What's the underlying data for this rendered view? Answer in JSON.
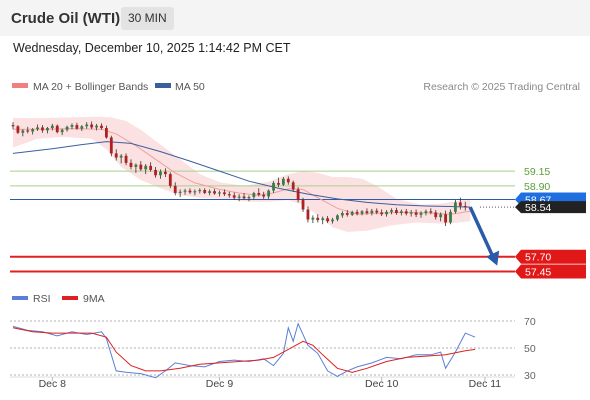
{
  "header": {
    "instrument": "Crude Oil (WTI)",
    "timeframe": "30 MIN"
  },
  "datetime": "Wednesday, December 10, 2025 1:14:42 PM CET",
  "legend": {
    "ma20_label": "MA 20 + Bollinger Bands",
    "ma20_color": "#f08080",
    "ma50_label": "MA 50",
    "ma50_color": "#3a5fa0",
    "credit": "Research © 2025 Trading Central"
  },
  "rsi_legend": {
    "rsi_label": "RSI",
    "rsi_color": "#5b7fd6",
    "ma_label": "9MA",
    "ma_color": "#e02020"
  },
  "chart_data": [
    {
      "type": "line",
      "title": "Crude Oil (WTI) 30 MIN",
      "x_labels": [
        "Dec 8",
        "Dec 9",
        "Dec 10",
        "Dec 11"
      ],
      "x_range": [
        0,
        104
      ],
      "x_tick_positions": [
        8,
        42,
        75,
        96
      ],
      "ylim": [
        56.8,
        60.2
      ],
      "price_labels": [
        {
          "value": 59.15,
          "text": "59.15",
          "style": "green"
        },
        {
          "value": 58.9,
          "text": "58.90",
          "style": "green"
        },
        {
          "value": 58.67,
          "text": "58.67",
          "style": "current"
        },
        {
          "value": 58.54,
          "text": "58.54",
          "style": "last"
        },
        {
          "value": 57.7,
          "text": "57.70",
          "style": "red"
        },
        {
          "value": 57.45,
          "text": "57.45",
          "style": "red"
        }
      ],
      "candles": [
        [
          59.93,
          59.98,
          59.86,
          59.91
        ],
        [
          59.91,
          59.93,
          59.78,
          59.8
        ],
        [
          59.8,
          59.86,
          59.74,
          59.84
        ],
        [
          59.84,
          59.9,
          59.79,
          59.82
        ],
        [
          59.82,
          59.88,
          59.77,
          59.86
        ],
        [
          59.86,
          59.94,
          59.83,
          59.89
        ],
        [
          59.89,
          59.93,
          59.8,
          59.84
        ],
        [
          59.84,
          59.9,
          59.79,
          59.88
        ],
        [
          59.88,
          59.95,
          59.84,
          59.92
        ],
        [
          59.92,
          59.94,
          59.79,
          59.81
        ],
        [
          59.81,
          59.87,
          59.76,
          59.85
        ],
        [
          59.85,
          59.92,
          59.82,
          59.9
        ],
        [
          59.9,
          59.96,
          59.86,
          59.93
        ],
        [
          59.93,
          59.97,
          59.85,
          59.87
        ],
        [
          59.87,
          59.93,
          59.83,
          59.91
        ],
        [
          59.91,
          59.98,
          59.87,
          59.94
        ],
        [
          59.94,
          59.99,
          59.86,
          59.89
        ],
        [
          59.89,
          59.95,
          59.84,
          59.92
        ],
        [
          59.92,
          59.96,
          59.85,
          59.88
        ],
        [
          59.88,
          59.92,
          59.7,
          59.72
        ],
        [
          59.72,
          59.75,
          59.4,
          59.45
        ],
        [
          59.45,
          59.52,
          59.33,
          59.38
        ],
        [
          59.38,
          59.44,
          59.28,
          59.41
        ],
        [
          59.41,
          59.45,
          59.25,
          59.29
        ],
        [
          59.29,
          59.35,
          59.18,
          59.22
        ],
        [
          59.22,
          59.28,
          59.12,
          59.26
        ],
        [
          59.26,
          59.32,
          59.15,
          59.18
        ],
        [
          59.18,
          59.27,
          59.1,
          59.24
        ],
        [
          59.24,
          59.3,
          59.14,
          59.17
        ],
        [
          59.17,
          59.22,
          59.04,
          59.08
        ],
        [
          59.08,
          59.18,
          59.02,
          59.14
        ],
        [
          59.14,
          59.2,
          59.05,
          59.1
        ],
        [
          59.1,
          59.13,
          58.86,
          58.9
        ],
        [
          58.9,
          58.96,
          58.74,
          58.78
        ],
        [
          58.78,
          58.84,
          58.71,
          58.8
        ],
        [
          58.8,
          58.85,
          58.75,
          58.82
        ],
        [
          58.82,
          58.86,
          58.76,
          58.79
        ],
        [
          58.79,
          58.84,
          58.74,
          58.81
        ],
        [
          58.81,
          58.86,
          58.77,
          58.83
        ],
        [
          58.83,
          58.86,
          58.76,
          58.78
        ],
        [
          58.78,
          58.84,
          58.74,
          58.81
        ],
        [
          58.81,
          58.85,
          58.75,
          58.77
        ],
        [
          58.77,
          58.82,
          58.72,
          58.79
        ],
        [
          58.79,
          58.84,
          58.73,
          58.76
        ],
        [
          58.76,
          58.8,
          58.7,
          58.74
        ],
        [
          58.74,
          58.79,
          58.66,
          58.7
        ],
        [
          58.7,
          58.76,
          58.64,
          58.72
        ],
        [
          58.72,
          58.78,
          58.66,
          58.69
        ],
        [
          58.69,
          58.74,
          58.64,
          58.71
        ],
        [
          58.71,
          58.8,
          58.67,
          58.78
        ],
        [
          58.78,
          58.86,
          58.72,
          58.75
        ],
        [
          58.75,
          58.8,
          58.68,
          58.72
        ],
        [
          58.72,
          58.84,
          58.68,
          58.82
        ],
        [
          58.82,
          58.98,
          58.78,
          58.95
        ],
        [
          58.95,
          59.04,
          58.88,
          58.92
        ],
        [
          58.92,
          59.05,
          58.9,
          59.02
        ],
        [
          59.02,
          59.06,
          58.92,
          58.96
        ],
        [
          58.96,
          58.99,
          58.8,
          58.84
        ],
        [
          58.84,
          58.88,
          58.62,
          58.66
        ],
        [
          58.66,
          58.7,
          58.46,
          58.5
        ],
        [
          58.5,
          58.55,
          58.28,
          58.33
        ],
        [
          58.33,
          58.4,
          58.27,
          58.36
        ],
        [
          58.36,
          58.42,
          58.28,
          58.32
        ],
        [
          58.32,
          58.38,
          58.25,
          58.35
        ],
        [
          58.35,
          58.39,
          58.27,
          58.3
        ],
        [
          58.3,
          58.36,
          58.26,
          58.33
        ],
        [
          58.33,
          58.42,
          58.3,
          58.4
        ],
        [
          58.4,
          58.47,
          58.36,
          58.44
        ],
        [
          58.44,
          58.49,
          58.38,
          58.41
        ],
        [
          58.41,
          58.48,
          58.39,
          58.46
        ],
        [
          58.46,
          58.5,
          58.4,
          58.43
        ],
        [
          58.43,
          58.49,
          58.4,
          58.47
        ],
        [
          58.47,
          58.52,
          58.41,
          58.44
        ],
        [
          58.44,
          58.51,
          58.4,
          58.48
        ],
        [
          58.48,
          58.52,
          58.42,
          58.45
        ],
        [
          58.45,
          58.5,
          58.39,
          58.42
        ],
        [
          58.42,
          58.49,
          58.38,
          58.46
        ],
        [
          58.46,
          58.52,
          58.42,
          58.49
        ],
        [
          58.49,
          58.53,
          58.41,
          58.44
        ],
        [
          58.44,
          58.5,
          58.4,
          58.47
        ],
        [
          58.47,
          58.51,
          58.4,
          58.43
        ],
        [
          58.43,
          58.49,
          58.38,
          58.45
        ],
        [
          58.45,
          58.5,
          58.37,
          58.41
        ],
        [
          58.41,
          58.47,
          58.36,
          58.44
        ],
        [
          58.44,
          58.5,
          58.4,
          58.47
        ],
        [
          58.47,
          58.52,
          58.42,
          58.45
        ],
        [
          58.45,
          58.49,
          58.33,
          58.37
        ],
        [
          58.37,
          58.45,
          58.3,
          58.42
        ],
        [
          58.42,
          58.48,
          58.22,
          58.28
        ],
        [
          58.28,
          58.5,
          58.25,
          58.46
        ],
        [
          58.46,
          58.66,
          58.43,
          58.62
        ],
        [
          58.62,
          58.7,
          58.5,
          58.56
        ],
        [
          58.56,
          58.63,
          58.48,
          58.54
        ]
      ],
      "ma50": [
        [
          0,
          59.45
        ],
        [
          8,
          59.53
        ],
        [
          14,
          59.6
        ],
        [
          19,
          59.65
        ],
        [
          24,
          59.62
        ],
        [
          30,
          59.48
        ],
        [
          36,
          59.32
        ],
        [
          42,
          59.15
        ],
        [
          48,
          58.98
        ],
        [
          54,
          58.86
        ],
        [
          60,
          58.76
        ],
        [
          66,
          58.68
        ],
        [
          72,
          58.62
        ],
        [
          78,
          58.58
        ],
        [
          84,
          58.56
        ],
        [
          89,
          58.55
        ],
        [
          93,
          58.54
        ]
      ],
      "bb_mid": [
        [
          0,
          59.86
        ],
        [
          6,
          59.86
        ],
        [
          12,
          59.87
        ],
        [
          18,
          59.86
        ],
        [
          21,
          59.78
        ],
        [
          25,
          59.58
        ],
        [
          29,
          59.35
        ],
        [
          33,
          59.12
        ],
        [
          37,
          58.95
        ],
        [
          42,
          58.84
        ],
        [
          46,
          58.78
        ],
        [
          50,
          58.74
        ],
        [
          53,
          58.78
        ],
        [
          56,
          58.85
        ],
        [
          59,
          58.84
        ],
        [
          62,
          58.7
        ],
        [
          66,
          58.52
        ],
        [
          70,
          58.42
        ],
        [
          75,
          58.44
        ],
        [
          80,
          58.45
        ],
        [
          85,
          58.44
        ],
        [
          89,
          58.42
        ],
        [
          93,
          58.47
        ]
      ],
      "bb_upper": [
        [
          0,
          60.05
        ],
        [
          6,
          60.05
        ],
        [
          12,
          60.06
        ],
        [
          17,
          60.07
        ],
        [
          20,
          60.06
        ],
        [
          23,
          60.0
        ],
        [
          26,
          59.85
        ],
        [
          30,
          59.6
        ],
        [
          34,
          59.35
        ],
        [
          38,
          59.1
        ],
        [
          42,
          58.96
        ],
        [
          47,
          58.9
        ],
        [
          52,
          58.97
        ],
        [
          56,
          59.1
        ],
        [
          59,
          59.15
        ],
        [
          62,
          59.12
        ],
        [
          65,
          59.05
        ],
        [
          68,
          59.05
        ],
        [
          71,
          59.02
        ],
        [
          74,
          58.9
        ],
        [
          78,
          58.68
        ],
        [
          83,
          58.58
        ],
        [
          87,
          58.6
        ],
        [
          93,
          58.68
        ]
      ],
      "bb_lower": [
        [
          0,
          59.55
        ],
        [
          5,
          59.7
        ],
        [
          10,
          59.73
        ],
        [
          16,
          59.7
        ],
        [
          19,
          59.52
        ],
        [
          22,
          59.22
        ],
        [
          26,
          59.0
        ],
        [
          30,
          58.86
        ],
        [
          34,
          58.74
        ],
        [
          38,
          58.7
        ],
        [
          43,
          58.68
        ],
        [
          48,
          58.63
        ],
        [
          52,
          58.63
        ],
        [
          56,
          58.66
        ],
        [
          59,
          58.58
        ],
        [
          62,
          58.4
        ],
        [
          65,
          58.2
        ],
        [
          68,
          58.12
        ],
        [
          72,
          58.14
        ],
        [
          77,
          58.23
        ],
        [
          82,
          58.28
        ],
        [
          88,
          58.26
        ],
        [
          93,
          58.3
        ]
      ],
      "forecast_arrow": [
        [
          93,
          58.54
        ],
        [
          98.5,
          57.55
        ]
      ]
    },
    {
      "type": "line",
      "title": "RSI",
      "ylim": [
        20,
        80
      ],
      "levels": [
        70,
        50,
        30
      ],
      "tick_labels": [
        "70",
        "50",
        "30"
      ],
      "x_range": [
        0,
        104
      ],
      "series": [
        {
          "name": "RSI",
          "color": "#5b7fd6",
          "points": [
            [
              0,
              66
            ],
            [
              3,
              63
            ],
            [
              6,
              62
            ],
            [
              9,
              59
            ],
            [
              12,
              62
            ],
            [
              15,
              60
            ],
            [
              18,
              62
            ],
            [
              19,
              57
            ],
            [
              21,
              33
            ],
            [
              23,
              32
            ],
            [
              26,
              31
            ],
            [
              29,
              28
            ],
            [
              31,
              33
            ],
            [
              33,
              39
            ],
            [
              36,
              37
            ],
            [
              39,
              36
            ],
            [
              42,
              40
            ],
            [
              45,
              41
            ],
            [
              48,
              40
            ],
            [
              51,
              42
            ],
            [
              53,
              37
            ],
            [
              55,
              46
            ],
            [
              56,
              65
            ],
            [
              57,
              55
            ],
            [
              58,
              68
            ],
            [
              60,
              52
            ],
            [
              62,
              46
            ],
            [
              64,
              33
            ],
            [
              66,
              29
            ],
            [
              68,
              33
            ],
            [
              70,
              36
            ],
            [
              73,
              39
            ],
            [
              76,
              43
            ],
            [
              79,
              42
            ],
            [
              82,
              45
            ],
            [
              85,
              45
            ],
            [
              87,
              47
            ],
            [
              88,
              35
            ],
            [
              90,
              47
            ],
            [
              92,
              61
            ],
            [
              94,
              58
            ]
          ]
        },
        {
          "name": "9MA",
          "color": "#e02020",
          "points": [
            [
              0,
              65
            ],
            [
              4,
              62
            ],
            [
              8,
              61
            ],
            [
              12,
              61
            ],
            [
              16,
              61
            ],
            [
              19,
              58
            ],
            [
              21,
              47
            ],
            [
              24,
              37
            ],
            [
              27,
              33
            ],
            [
              30,
              33
            ],
            [
              34,
              35
            ],
            [
              38,
              38
            ],
            [
              42,
              39
            ],
            [
              46,
              40
            ],
            [
              50,
              41
            ],
            [
              53,
              43
            ],
            [
              56,
              49
            ],
            [
              59,
              55
            ],
            [
              61,
              52
            ],
            [
              63,
              45
            ],
            [
              66,
              35
            ],
            [
              69,
              32
            ],
            [
              72,
              35
            ],
            [
              76,
              40
            ],
            [
              80,
              43
            ],
            [
              84,
              44
            ],
            [
              88,
              45
            ],
            [
              92,
              48
            ],
            [
              94,
              49
            ]
          ]
        }
      ]
    }
  ]
}
